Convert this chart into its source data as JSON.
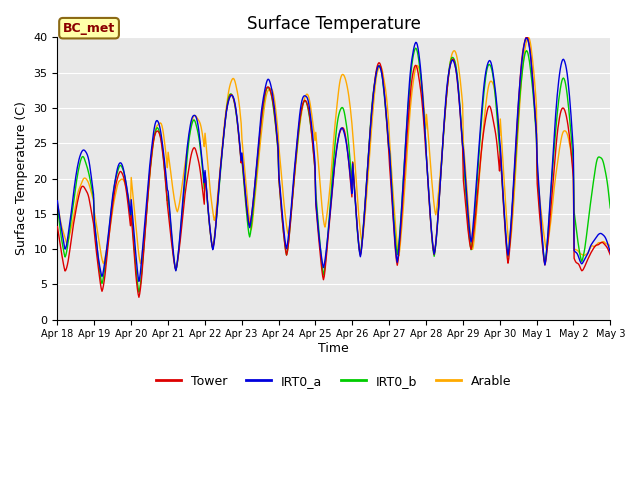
{
  "title": "Surface Temperature",
  "ylabel": "Surface Temperature (C)",
  "xlabel": "Time",
  "ylim": [
    0,
    40
  ],
  "annotation": "BC_met",
  "bg_color": "#e8e8e8",
  "line_colors": {
    "Tower": "#dd0000",
    "IRT0_a": "#0000dd",
    "IRT0_b": "#00cc00",
    "Arable": "#ffaa00"
  },
  "legend_labels": [
    "Tower",
    "IRT0_a",
    "IRT0_b",
    "Arable"
  ],
  "tick_labels": [
    "Apr 18",
    "Apr 19",
    "Apr 20",
    "Apr 21",
    "Apr 22",
    "Apr 23",
    "Apr 24",
    "Apr 25",
    "Apr 26",
    "Apr 27",
    "Apr 28",
    "Apr 29",
    "Apr 30",
    "May 1",
    "May 2",
    "May 3"
  ],
  "yticks": [
    0,
    5,
    10,
    15,
    20,
    25,
    30,
    35,
    40
  ],
  "day_maxes_tower": [
    19,
    21,
    27,
    24,
    32,
    33,
    31,
    27,
    36,
    36,
    37,
    30,
    40,
    30,
    11
  ],
  "day_mins_tower": [
    7,
    4,
    3,
    7,
    10,
    13,
    9,
    6,
    9,
    8,
    9,
    10,
    8,
    8,
    7
  ],
  "day_maxes_irt0a": [
    24,
    22,
    28,
    29,
    32,
    34,
    32,
    27,
    36,
    39,
    37,
    37,
    40,
    37,
    12
  ],
  "day_mins_irt0a": [
    10,
    6,
    6,
    7,
    10,
    13,
    10,
    7,
    9,
    8,
    9,
    11,
    9,
    8,
    8
  ],
  "day_maxes_irt0b": [
    23,
    22,
    27,
    28,
    32,
    33,
    31,
    30,
    36,
    38,
    37,
    36,
    38,
    34,
    23
  ],
  "day_mins_irt0b": [
    9,
    5,
    4,
    7,
    10,
    12,
    9,
    6,
    9,
    9,
    9,
    10,
    9,
    8,
    8
  ],
  "day_maxes_arable": [
    20,
    20,
    28,
    29,
    34,
    33,
    32,
    35,
    36,
    36,
    38,
    34,
    40,
    27,
    11
  ],
  "day_mins_arable": [
    11,
    8,
    8,
    15,
    14,
    13,
    12,
    13,
    11,
    9,
    15,
    10,
    10,
    10,
    9
  ]
}
